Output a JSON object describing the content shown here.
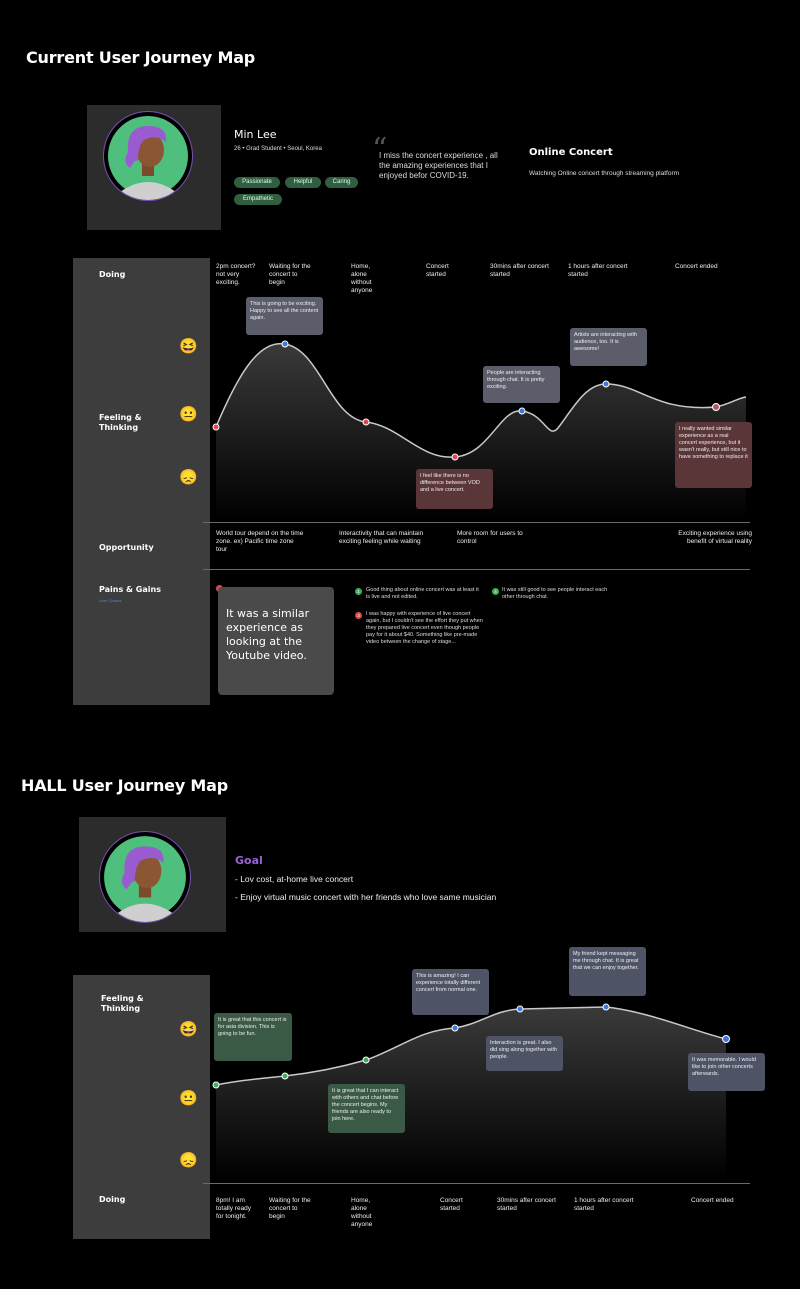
{
  "map1": {
    "title": "Current User Journey Map",
    "persona": {
      "name": "Min Lee",
      "details": "26 • Grad Student • Seoul, Korea",
      "tags": [
        "Passionate",
        "Helpful",
        "Caring",
        "Empathetic"
      ]
    },
    "quote": "I miss the concert experience , all the amazing experiences that I enjoyed befor COVID-19.",
    "context": {
      "title": "Online Concert",
      "subtitle": "Watching Online concert through streaming platform"
    },
    "rows": {
      "doing": "Doing",
      "feeling": "Feeling & Thinking",
      "opportunity": "Opportunity",
      "pains": "Pains & Gains",
      "pains_sub": "User Quotes"
    },
    "stages": [
      "2pm concert? not very exciting.",
      "Waiting for the concert to begin",
      "Home, alone without anyone",
      "Concert started",
      "30mins after concert started",
      "1 hours after concert started",
      "Concert ended"
    ],
    "emotions": [
      "laughing-face",
      "neutral-face",
      "sad-face"
    ],
    "bubbles": [
      "This is going to be exciting. Happy to see all the content again.",
      "I feel like there is no difference between VOD and a live concert.",
      "People are interacting through chat. It is pretty exciting.",
      "Artists are interacting with audience, too. It is awesome!",
      "I really wanted similar experience as a real concert experience, but it wasn't really, but still nice to have something to replace it"
    ],
    "opportunities": [
      "World tour depend on the time zone. ex) Pacific time zone tour",
      "Interactivity that can maintain exciting feeling while waiting",
      "More room for users to control",
      "Exciting experience using benefit of virtual reality"
    ],
    "big_quote": "It was a similar experience as looking at the Youtube video.",
    "pains_gains": [
      {
        "num": "1",
        "type": "gain",
        "text": "Good thing about online concert was at least it is live and not edited."
      },
      {
        "num": "3",
        "type": "pain",
        "text": "I was happy with experience of live concert again, but I couldn't see the effort they put when they prepared live concert even though people pay for it about $40. Something like pre-made video between the change of stage..."
      },
      {
        "num": "4",
        "type": "gain",
        "text": "It was still good to see people interact each other through chat."
      }
    ],
    "curve_colors": {
      "pain": "#e0474c",
      "gain": "#3a78e0",
      "neutral": "#b55a6a"
    }
  },
  "map2": {
    "title": "HALL User Journey Map",
    "goal": {
      "title": "Goal",
      "items": [
        "- Lov cost, at-home live concert",
        "- Enjoy virtual music concert with her friends who love same musician"
      ]
    },
    "rows": {
      "feeling": "Feeling & Thinking",
      "doing": "Doing"
    },
    "emotions": [
      "laughing-face",
      "neutral-face",
      "sad-face"
    ],
    "bubbles": [
      "It is great that this concert is for asia division. This is going to be fun.",
      "It is great that I can interact with others and chat before the concert begins. My friends are also ready to join here.",
      "This is amazing! I can experience totally different concert from normal one.",
      "Interaction is great. I also did sing along together with people.",
      "My friend kept messaging me through chat. It is great that we can enjoy together.",
      "It was memorable. I would like to join other concerts afterwards."
    ],
    "stages": [
      "8pm! I am totally ready for tonight.",
      "Waiting for the concert to begin",
      "Home, alone without anyone",
      "Concert started",
      "30mins after concert started",
      "1 hours after concert started",
      "Concert ended"
    ]
  }
}
